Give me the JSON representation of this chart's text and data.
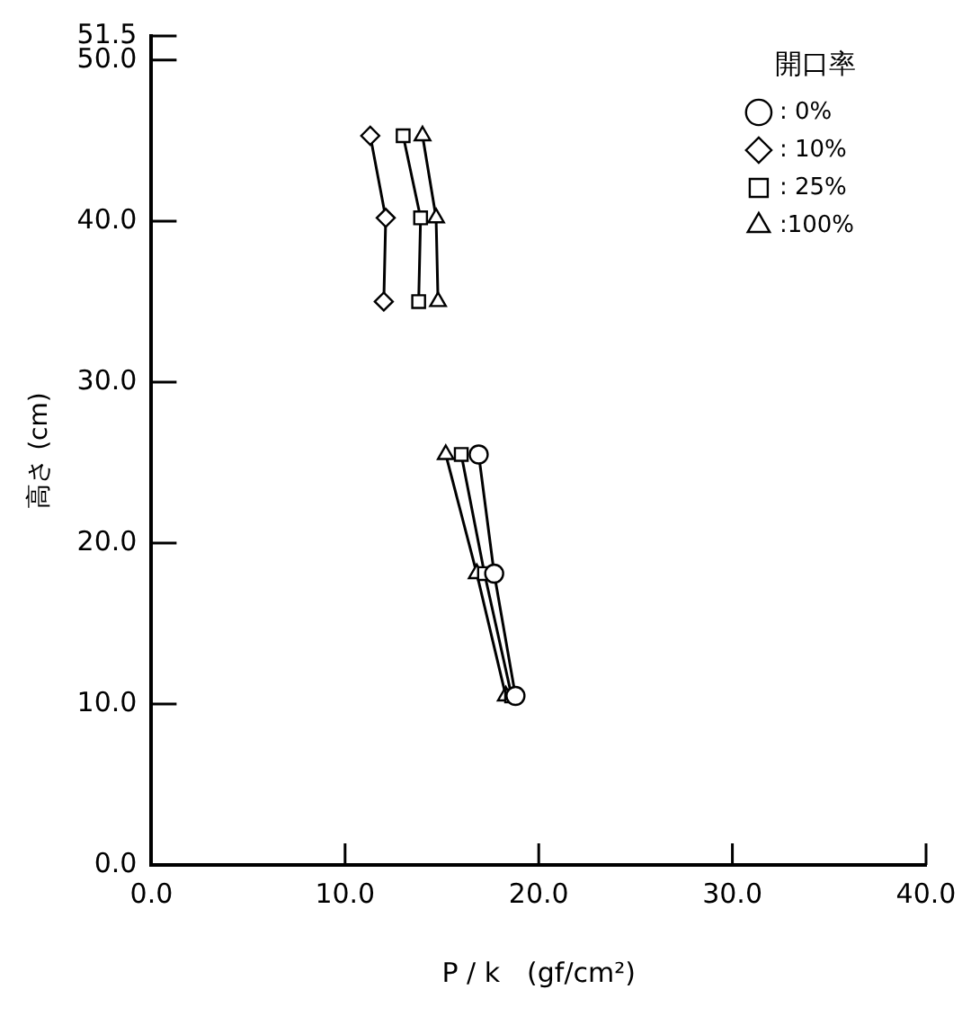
{
  "chart_data": {
    "type": "line",
    "xlabel": "P / k　(gf/cm²)",
    "ylabel": "高さ (cm)",
    "legend_title": "開口率",
    "legend": "top right",
    "grid": false,
    "xlim": [
      0,
      40
    ],
    "xticks": [
      {
        "value": 0,
        "label": "0.0"
      },
      {
        "value": 10,
        "label": "10.0"
      },
      {
        "value": 20,
        "label": "20.0"
      },
      {
        "value": 30,
        "label": "30.0"
      },
      {
        "value": 40,
        "label": "40.0"
      }
    ],
    "ylim": [
      0,
      51.5
    ],
    "yticks": [
      {
        "value": 0,
        "label": "0.0"
      },
      {
        "value": 10,
        "label": "10.0"
      },
      {
        "value": 20,
        "label": "20.0"
      },
      {
        "value": 30,
        "label": "30.0"
      },
      {
        "value": 40,
        "label": "40.0"
      },
      {
        "value": 50,
        "label": "50.0"
      },
      51.5
    ],
    "series": [
      {
        "name": ": 0%",
        "color": "#000000",
        "marker": "circle",
        "x": [
          16.9,
          17.7,
          18.8
        ],
        "values": [
          25.5,
          18.1,
          10.5
        ]
      },
      {
        "name": ": 10%",
        "color": "#000000",
        "marker": "diamond",
        "x": [
          11.3,
          12.1,
          12.0
        ],
        "values": [
          45.3,
          40.2,
          35.0
        ]
      },
      {
        "name": ": 25%",
        "color": "#000000",
        "marker": "square",
        "x": [
          13.0,
          13.9,
          13.8,
          null,
          16.0,
          17.2,
          18.6
        ],
        "values": [
          45.3,
          40.2,
          35.0,
          null,
          25.5,
          18.1,
          10.5
        ]
      },
      {
        "name": ":100%",
        "color": "#000000",
        "marker": "triangle",
        "x": [
          14.0,
          14.7,
          14.8,
          null,
          15.2,
          16.8,
          18.3
        ],
        "values": [
          45.3,
          40.2,
          35.0,
          null,
          25.5,
          18.1,
          10.5
        ]
      }
    ]
  }
}
